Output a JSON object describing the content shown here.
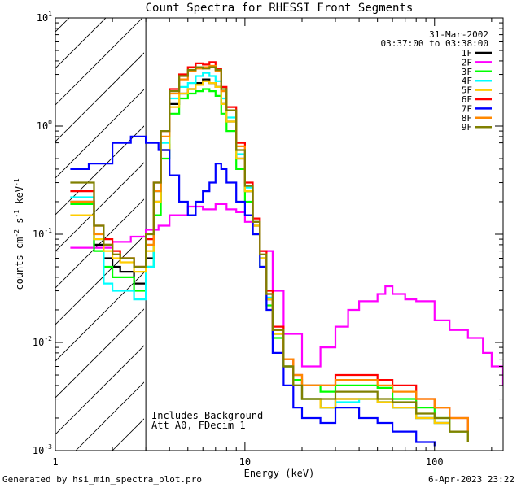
{
  "chart_data": {
    "type": "line",
    "title": "Count Spectra for RHESSI Front Segments",
    "xlabel": "Energy (keV)",
    "ylabel": "counts cm^-2 s^-1 keV^-1",
    "ylabel_parts": {
      "base": "counts cm",
      "e1": "-2",
      "mid": " s",
      "e2": "-1",
      "end": " keV",
      "e3": "-1"
    },
    "xscale": "log",
    "yscale": "log",
    "xlim": [
      1.0,
      230.0
    ],
    "ylim": [
      0.001,
      10.0
    ],
    "x_ticks": [
      {
        "value": 1,
        "label": "1"
      },
      {
        "value": 10,
        "label": "10"
      },
      {
        "value": 100,
        "label": "100"
      }
    ],
    "y_ticks": [
      {
        "value": 0.001,
        "base": "10",
        "exp": "-3"
      },
      {
        "value": 0.01,
        "base": "10",
        "exp": "-2"
      },
      {
        "value": 0.1,
        "base": "10",
        "exp": "-1"
      },
      {
        "value": 1,
        "base": "10",
        "exp": "0"
      },
      {
        "value": 10,
        "base": "10",
        "exp": "1"
      }
    ],
    "excluded_region": {
      "x_range": [
        1.0,
        3.0
      ],
      "style": "hatched"
    },
    "date": "31-Mar-2002",
    "time_range": "03:37:00 to 03:38:00",
    "annotations": [
      "Includes Background",
      "Att A0, FDecim 1"
    ],
    "legend": {
      "position": "top-right"
    },
    "series": [
      {
        "name": "1F",
        "color": "#000000",
        "x": [
          1.2,
          1.4,
          1.6,
          1.8,
          2.0,
          2.2,
          2.6,
          3.0,
          3.3,
          3.6,
          4.0,
          4.5,
          5.0,
          5.5,
          6.0,
          6.5,
          7.0,
          7.5,
          8.0,
          9.0,
          10.0,
          11.0,
          12.0,
          13.0,
          14.0,
          16.0,
          18.0,
          20.0,
          25.0,
          30.0,
          40.0,
          50.0,
          60.0,
          80.0,
          100.0,
          120.0,
          150.0
        ],
        "y": [
          0.2,
          0.2,
          0.08,
          0.06,
          0.05,
          0.045,
          0.035,
          0.06,
          0.2,
          0.6,
          1.6,
          2.0,
          2.2,
          2.5,
          2.7,
          2.5,
          2.3,
          1.6,
          1.1,
          0.5,
          0.25,
          0.12,
          0.06,
          0.025,
          0.012,
          0.006,
          0.004,
          0.003,
          0.0025,
          0.003,
          0.003,
          0.0028,
          0.0025,
          0.002,
          0.0018,
          0.0015,
          0.0012
        ]
      },
      {
        "name": "2F",
        "color": "#ff00ff",
        "x": [
          1.2,
          1.5,
          2.0,
          2.5,
          3.0,
          3.5,
          4.0,
          5.0,
          6.0,
          7.0,
          8.0,
          9.0,
          10.0,
          11.0,
          12.0,
          14.0,
          16.0,
          20.0,
          25.0,
          30.0,
          35.0,
          40.0,
          50.0,
          55.0,
          60.0,
          70.0,
          80.0,
          100.0,
          120.0,
          150.0,
          180.0,
          200.0,
          230.0
        ],
        "y": [
          0.075,
          0.075,
          0.085,
          0.095,
          0.11,
          0.12,
          0.15,
          0.18,
          0.17,
          0.19,
          0.17,
          0.16,
          0.13,
          0.1,
          0.07,
          0.03,
          0.012,
          0.006,
          0.009,
          0.014,
          0.02,
          0.024,
          0.028,
          0.033,
          0.028,
          0.025,
          0.024,
          0.016,
          0.013,
          0.011,
          0.008,
          0.006,
          0.004
        ]
      },
      {
        "name": "3F",
        "color": "#00ff00",
        "x": [
          1.2,
          1.4,
          1.6,
          1.8,
          2.0,
          2.2,
          2.6,
          3.0,
          3.3,
          3.6,
          4.0,
          4.5,
          5.0,
          5.5,
          6.0,
          6.5,
          7.0,
          7.5,
          8.0,
          9.0,
          10.0,
          11.0,
          12.0,
          13.0,
          14.0,
          16.0,
          18.0,
          20.0,
          25.0,
          30.0,
          40.0,
          50.0,
          60.0,
          80.0,
          100.0,
          120.0,
          150.0
        ],
        "y": [
          0.19,
          0.19,
          0.07,
          0.05,
          0.04,
          0.04,
          0.03,
          0.05,
          0.15,
          0.5,
          1.3,
          1.8,
          2.0,
          2.1,
          2.2,
          2.1,
          1.9,
          1.3,
          0.9,
          0.4,
          0.2,
          0.1,
          0.05,
          0.022,
          0.011,
          0.006,
          0.0045,
          0.004,
          0.0035,
          0.004,
          0.004,
          0.0038,
          0.003,
          0.0025,
          0.002,
          0.0015,
          0.0012
        ]
      },
      {
        "name": "4F",
        "color": "#00ffff",
        "x": [
          1.2,
          1.4,
          1.6,
          1.8,
          2.0,
          2.2,
          2.6,
          3.0,
          3.3,
          3.6,
          4.0,
          4.5,
          5.0,
          5.5,
          6.0,
          6.5,
          7.0,
          7.5,
          8.0,
          9.0,
          10.0,
          11.0,
          12.0,
          13.0,
          14.0,
          16.0,
          18.0,
          20.0,
          25.0,
          30.0,
          40.0,
          50.0,
          60.0,
          80.0,
          100.0,
          120.0,
          150.0
        ],
        "y": [
          0.22,
          0.22,
          0.09,
          0.035,
          0.03,
          0.03,
          0.025,
          0.05,
          0.25,
          0.7,
          1.8,
          2.3,
          2.5,
          2.9,
          3.1,
          2.9,
          2.6,
          1.8,
          1.2,
          0.55,
          0.27,
          0.13,
          0.06,
          0.026,
          0.012,
          0.006,
          0.004,
          0.003,
          0.0025,
          0.0028,
          0.003,
          0.0028,
          0.0025,
          0.002,
          0.0018,
          0.0015,
          0.0012
        ]
      },
      {
        "name": "5F",
        "color": "#ffcc00",
        "x": [
          1.2,
          1.4,
          1.6,
          1.8,
          2.0,
          2.2,
          2.6,
          3.0,
          3.3,
          3.6,
          4.0,
          4.5,
          5.0,
          5.5,
          6.0,
          6.5,
          7.0,
          7.5,
          8.0,
          9.0,
          10.0,
          11.0,
          12.0,
          13.0,
          14.0,
          16.0,
          18.0,
          20.0,
          25.0,
          30.0,
          40.0,
          50.0,
          60.0,
          80.0,
          100.0,
          120.0,
          150.0
        ],
        "y": [
          0.15,
          0.15,
          0.09,
          0.07,
          0.06,
          0.055,
          0.045,
          0.07,
          0.2,
          0.6,
          1.5,
          2.0,
          2.2,
          2.4,
          2.6,
          2.5,
          2.3,
          1.6,
          1.1,
          0.5,
          0.25,
          0.12,
          0.06,
          0.025,
          0.012,
          0.006,
          0.004,
          0.003,
          0.0025,
          0.003,
          0.003,
          0.0028,
          0.0025,
          0.002,
          0.0018,
          0.0015,
          0.0012
        ]
      },
      {
        "name": "6F",
        "color": "#ff0000",
        "x": [
          1.2,
          1.4,
          1.6,
          1.8,
          2.0,
          2.2,
          2.6,
          3.0,
          3.3,
          3.6,
          4.0,
          4.5,
          5.0,
          5.5,
          6.0,
          6.5,
          7.0,
          7.5,
          8.0,
          9.0,
          10.0,
          11.0,
          12.0,
          13.0,
          14.0,
          16.0,
          18.0,
          20.0,
          25.0,
          30.0,
          40.0,
          50.0,
          60.0,
          80.0,
          100.0,
          120.0,
          150.0
        ],
        "y": [
          0.25,
          0.25,
          0.12,
          0.09,
          0.07,
          0.06,
          0.05,
          0.09,
          0.3,
          0.9,
          2.2,
          3.0,
          3.5,
          3.8,
          3.7,
          3.9,
          3.4,
          2.3,
          1.5,
          0.7,
          0.3,
          0.14,
          0.07,
          0.03,
          0.014,
          0.007,
          0.005,
          0.004,
          0.004,
          0.005,
          0.005,
          0.0045,
          0.004,
          0.003,
          0.0025,
          0.002,
          0.0015
        ]
      },
      {
        "name": "7F",
        "color": "#0000ff",
        "x": [
          1.2,
          1.5,
          2.0,
          2.5,
          3.0,
          3.5,
          4.0,
          4.5,
          5.0,
          5.5,
          6.0,
          6.5,
          7.0,
          7.5,
          8.0,
          9.0,
          10.0,
          11.0,
          12.0,
          13.0,
          14.0,
          16.0,
          18.0,
          20.0,
          25.0,
          30.0,
          40.0,
          50.0,
          60.0,
          80.0,
          100.0
        ],
        "y": [
          0.4,
          0.45,
          0.7,
          0.8,
          0.7,
          0.6,
          0.35,
          0.2,
          0.15,
          0.2,
          0.25,
          0.3,
          0.45,
          0.4,
          0.3,
          0.2,
          0.15,
          0.1,
          0.05,
          0.02,
          0.008,
          0.004,
          0.0025,
          0.002,
          0.0018,
          0.0025,
          0.002,
          0.0018,
          0.0015,
          0.0012,
          0.0011
        ]
      },
      {
        "name": "8F",
        "color": "#ff8800",
        "x": [
          1.2,
          1.4,
          1.6,
          1.8,
          2.0,
          2.2,
          2.6,
          3.0,
          3.3,
          3.6,
          4.0,
          4.5,
          5.0,
          5.5,
          6.0,
          6.5,
          7.0,
          7.5,
          8.0,
          9.0,
          10.0,
          11.0,
          12.0,
          13.0,
          14.0,
          16.0,
          18.0,
          20.0,
          25.0,
          30.0,
          40.0,
          50.0,
          60.0,
          80.0,
          100.0,
          120.0,
          150.0
        ],
        "y": [
          0.2,
          0.2,
          0.1,
          0.08,
          0.065,
          0.06,
          0.05,
          0.08,
          0.25,
          0.8,
          2.0,
          2.7,
          3.2,
          3.4,
          3.5,
          3.6,
          3.2,
          2.1,
          1.4,
          0.65,
          0.28,
          0.13,
          0.065,
          0.028,
          0.013,
          0.007,
          0.005,
          0.004,
          0.004,
          0.0045,
          0.0045,
          0.004,
          0.0035,
          0.003,
          0.0025,
          0.002,
          0.0015
        ]
      },
      {
        "name": "9F",
        "color": "#808000",
        "x": [
          1.2,
          1.4,
          1.6,
          1.8,
          2.0,
          2.2,
          2.6,
          3.0,
          3.3,
          3.6,
          4.0,
          4.5,
          5.0,
          5.5,
          6.0,
          6.5,
          7.0,
          7.5,
          8.0,
          9.0,
          10.0,
          11.0,
          12.0,
          13.0,
          14.0,
          16.0,
          18.0,
          20.0,
          25.0,
          30.0,
          40.0,
          50.0,
          60.0,
          80.0,
          100.0,
          120.0,
          150.0
        ],
        "y": [
          0.3,
          0.3,
          0.12,
          0.08,
          0.065,
          0.06,
          0.05,
          0.1,
          0.3,
          0.9,
          2.1,
          2.9,
          3.3,
          3.5,
          3.4,
          3.5,
          3.3,
          2.2,
          1.4,
          0.6,
          0.28,
          0.13,
          0.065,
          0.028,
          0.013,
          0.006,
          0.004,
          0.003,
          0.003,
          0.0035,
          0.0035,
          0.003,
          0.0028,
          0.0022,
          0.002,
          0.0015,
          0.0012
        ]
      }
    ]
  },
  "footer": {
    "generated_by": "Generated by hsi_min_spectra_plot.pro",
    "timestamp": "6-Apr-2023 23:22"
  }
}
